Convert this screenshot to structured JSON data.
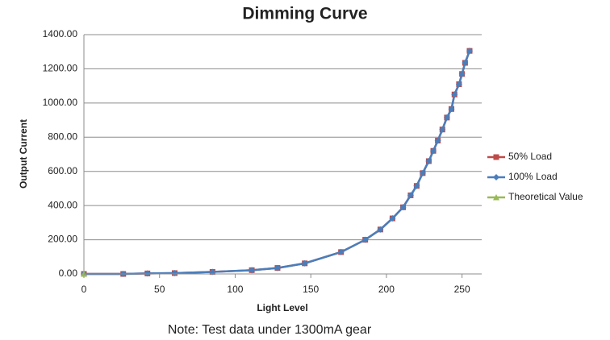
{
  "chart_data": {
    "type": "line",
    "title": "Dimming Curve",
    "x_label": "Light Level",
    "y_label": "Output Current",
    "note": "Note: Test data under 1300mA gear",
    "x": [
      0,
      26,
      42,
      60,
      85,
      111,
      128,
      146,
      170,
      186,
      196,
      204,
      211,
      216,
      220,
      224,
      228,
      231,
      234,
      237,
      240,
      243,
      245,
      248,
      250,
      252,
      255
    ],
    "series": [
      {
        "name": "50% Load",
        "color": "#be4b48",
        "marker": "square",
        "values": [
          0,
          0,
          3,
          5,
          12,
          22,
          35,
          62,
          128,
          200,
          260,
          325,
          390,
          460,
          515,
          590,
          660,
          720,
          780,
          845,
          915,
          965,
          1050,
          1110,
          1170,
          1235,
          1305
        ]
      },
      {
        "name": "100% Load",
        "color": "#4a7ebb",
        "marker": "diamond",
        "values": [
          0,
          0,
          3,
          5,
          12,
          22,
          35,
          62,
          128,
          200,
          260,
          325,
          390,
          460,
          515,
          590,
          660,
          720,
          780,
          845,
          915,
          965,
          1050,
          1110,
          1170,
          1235,
          1305
        ]
      },
      {
        "name": "Theoretical Value",
        "color": "#98b954",
        "marker": "triangle",
        "values": [
          0,
          null,
          null,
          null,
          null,
          null,
          null,
          null,
          null,
          null,
          null,
          null,
          null,
          null,
          null,
          null,
          null,
          null,
          null,
          null,
          null,
          null,
          null,
          null,
          null,
          null,
          null
        ]
      }
    ],
    "xlim": [
      0,
      263
    ],
    "xticks": [
      0,
      50,
      100,
      150,
      200,
      250
    ],
    "ylim": [
      0,
      1400
    ],
    "yticks": [
      {
        "value": 0,
        "label": "0.00"
      },
      {
        "value": 200,
        "label": "200.00"
      },
      {
        "value": 400,
        "label": "400.00"
      },
      {
        "value": 600,
        "label": "600.00"
      },
      {
        "value": 800,
        "label": "800.00"
      },
      {
        "value": 1000,
        "label": "1000.00"
      },
      {
        "value": 1200,
        "label": "1200.00"
      },
      {
        "value": 1400,
        "label": "1400.00"
      }
    ],
    "grid": true,
    "legend": "right"
  }
}
